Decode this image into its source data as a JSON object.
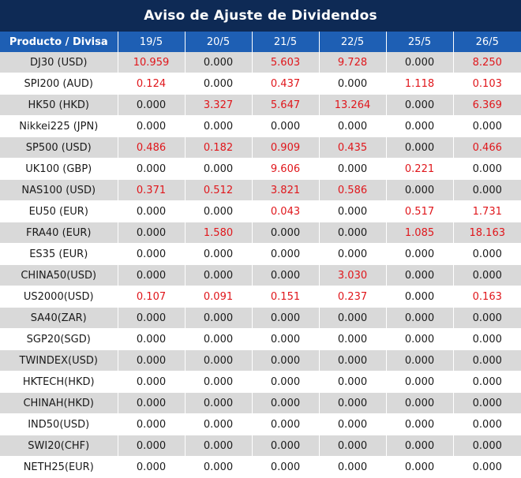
{
  "title": "Aviso de Ajuste de Dividendos",
  "columns": [
    "Producto / Divisa",
    "19/5",
    "20/5",
    "21/5",
    "22/5",
    "25/5",
    "26/5"
  ],
  "colors": {
    "header_bg": "#0e2a55",
    "column_header_bg": "#1e5fb4",
    "nonzero": "#e0161b",
    "zero": "#1a1a1a",
    "stripe": "#d9d9d9"
  },
  "rows": [
    {
      "product": "DJ30 (USD)",
      "values": [
        "10.959",
        "0.000",
        "5.603",
        "9.728",
        "0.000",
        "8.250"
      ]
    },
    {
      "product": "SPI200 (AUD)",
      "values": [
        "0.124",
        "0.000",
        "0.437",
        "0.000",
        "1.118",
        "0.103"
      ]
    },
    {
      "product": "HK50 (HKD)",
      "values": [
        "0.000",
        "3.327",
        "5.647",
        "13.264",
        "0.000",
        "6.369"
      ]
    },
    {
      "product": "Nikkei225 (JPN)",
      "values": [
        "0.000",
        "0.000",
        "0.000",
        "0.000",
        "0.000",
        "0.000"
      ]
    },
    {
      "product": "SP500 (USD)",
      "values": [
        "0.486",
        "0.182",
        "0.909",
        "0.435",
        "0.000",
        "0.466"
      ]
    },
    {
      "product": "UK100 (GBP)",
      "values": [
        "0.000",
        "0.000",
        "9.606",
        "0.000",
        "0.221",
        "0.000"
      ]
    },
    {
      "product": "NAS100 (USD)",
      "values": [
        "0.371",
        "0.512",
        "3.821",
        "0.586",
        "0.000",
        "0.000"
      ]
    },
    {
      "product": "EU50 (EUR)",
      "values": [
        "0.000",
        "0.000",
        "0.043",
        "0.000",
        "0.517",
        "1.731"
      ]
    },
    {
      "product": "FRA40 (EUR)",
      "values": [
        "0.000",
        "1.580",
        "0.000",
        "0.000",
        "1.085",
        "18.163"
      ]
    },
    {
      "product": "ES35 (EUR)",
      "values": [
        "0.000",
        "0.000",
        "0.000",
        "0.000",
        "0.000",
        "0.000"
      ]
    },
    {
      "product": "CHINA50(USD)",
      "values": [
        "0.000",
        "0.000",
        "0.000",
        "3.030",
        "0.000",
        "0.000"
      ]
    },
    {
      "product": "US2000(USD)",
      "values": [
        "0.107",
        "0.091",
        "0.151",
        "0.237",
        "0.000",
        "0.163"
      ]
    },
    {
      "product": "SA40(ZAR)",
      "values": [
        "0.000",
        "0.000",
        "0.000",
        "0.000",
        "0.000",
        "0.000"
      ]
    },
    {
      "product": "SGP20(SGD)",
      "values": [
        "0.000",
        "0.000",
        "0.000",
        "0.000",
        "0.000",
        "0.000"
      ]
    },
    {
      "product": "TWINDEX(USD)",
      "values": [
        "0.000",
        "0.000",
        "0.000",
        "0.000",
        "0.000",
        "0.000"
      ]
    },
    {
      "product": "HKTECH(HKD)",
      "values": [
        "0.000",
        "0.000",
        "0.000",
        "0.000",
        "0.000",
        "0.000"
      ]
    },
    {
      "product": "CHINAH(HKD)",
      "values": [
        "0.000",
        "0.000",
        "0.000",
        "0.000",
        "0.000",
        "0.000"
      ]
    },
    {
      "product": "IND50(USD)",
      "values": [
        "0.000",
        "0.000",
        "0.000",
        "0.000",
        "0.000",
        "0.000"
      ]
    },
    {
      "product": "SWI20(CHF)",
      "values": [
        "0.000",
        "0.000",
        "0.000",
        "0.000",
        "0.000",
        "0.000"
      ]
    },
    {
      "product": "NETH25(EUR)",
      "values": [
        "0.000",
        "0.000",
        "0.000",
        "0.000",
        "0.000",
        "0.000"
      ]
    }
  ]
}
